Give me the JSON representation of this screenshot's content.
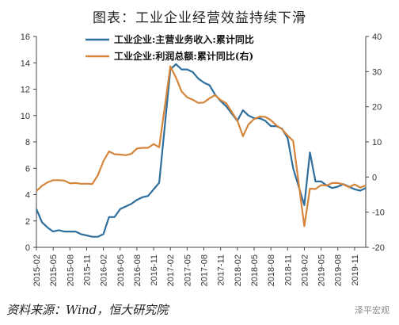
{
  "chart_data": {
    "type": "line",
    "title": "图表：工业企业经营效益持续下滑",
    "left_axis": {
      "min": 0,
      "max": 16,
      "step": 2
    },
    "right_axis": {
      "min": -20,
      "max": 40,
      "step": 10
    },
    "x_tick_labels": [
      "2015-02",
      "2015-05",
      "2015-08",
      "2015-11",
      "2016-02",
      "2016-05",
      "2016-08",
      "2016-11",
      "2017-02",
      "2017-05",
      "2017-08",
      "2017-11",
      "2018-02",
      "2018-05",
      "2018-08",
      "2018-11",
      "2019-02",
      "2019-05",
      "2019-08",
      "2019-11"
    ],
    "legend_placement": "top-left",
    "grid": false,
    "series": [
      {
        "name": "工业企业:主营业务收入:累计同比",
        "axis": "left",
        "color": "#2f6f9e",
        "points": [
          [
            "2015-02",
            2.9
          ],
          [
            "2015-03",
            1.9
          ],
          [
            "2015-04",
            1.5
          ],
          [
            "2015-05",
            1.2
          ],
          [
            "2015-06",
            1.3
          ],
          [
            "2015-07",
            1.2
          ],
          [
            "2015-08",
            1.2
          ],
          [
            "2015-09",
            1.2
          ],
          [
            "2015-10",
            1.0
          ],
          [
            "2015-11",
            0.9
          ],
          [
            "2015-12",
            0.8
          ],
          [
            "2016-01",
            0.8
          ],
          [
            "2016-02",
            1.0
          ],
          [
            "2016-03",
            2.3
          ],
          [
            "2016-04",
            2.3
          ],
          [
            "2016-05",
            2.9
          ],
          [
            "2016-06",
            3.1
          ],
          [
            "2016-07",
            3.3
          ],
          [
            "2016-08",
            3.6
          ],
          [
            "2016-09",
            3.8
          ],
          [
            "2016-10",
            3.9
          ],
          [
            "2016-11",
            4.4
          ],
          [
            "2016-12",
            4.9
          ],
          [
            "2017-02",
            13.5
          ],
          [
            "2017-03",
            13.9
          ],
          [
            "2017-04",
            13.5
          ],
          [
            "2017-05",
            13.5
          ],
          [
            "2017-06",
            13.3
          ],
          [
            "2017-07",
            12.8
          ],
          [
            "2017-08",
            12.5
          ],
          [
            "2017-09",
            12.3
          ],
          [
            "2017-10",
            11.6
          ],
          [
            "2017-11",
            11.1
          ],
          [
            "2017-12",
            10.7
          ],
          [
            "2018-02",
            9.6
          ],
          [
            "2018-03",
            10.4
          ],
          [
            "2018-04",
            10.0
          ],
          [
            "2018-05",
            9.8
          ],
          [
            "2018-06",
            9.8
          ],
          [
            "2018-07",
            9.6
          ],
          [
            "2018-08",
            9.2
          ],
          [
            "2018-09",
            9.2
          ],
          [
            "2018-10",
            9.0
          ],
          [
            "2018-11",
            8.3
          ],
          [
            "2018-12",
            6.0
          ],
          [
            "2019-02",
            3.2
          ],
          [
            "2019-03",
            7.2
          ],
          [
            "2019-04",
            5.0
          ],
          [
            "2019-05",
            5.0
          ],
          [
            "2019-06",
            4.7
          ],
          [
            "2019-07",
            4.5
          ],
          [
            "2019-08",
            4.6
          ],
          [
            "2019-09",
            4.8
          ],
          [
            "2019-10",
            4.6
          ],
          [
            "2019-11",
            4.4
          ],
          [
            "2019-12",
            4.3
          ],
          [
            "2020-01",
            4.5
          ]
        ]
      },
      {
        "name": "工业企业:利润总额:累计同比(右)",
        "axis": "right",
        "color": "#d4853a",
        "points": [
          [
            "2015-02",
            -4.0
          ],
          [
            "2015-03",
            -2.5
          ],
          [
            "2015-04",
            -1.5
          ],
          [
            "2015-05",
            -0.9
          ],
          [
            "2015-06",
            -0.9
          ],
          [
            "2015-07",
            -1.0
          ],
          [
            "2015-08",
            -1.8
          ],
          [
            "2015-09",
            -1.7
          ],
          [
            "2015-10",
            -1.9
          ],
          [
            "2015-11",
            -1.9
          ],
          [
            "2015-12",
            -2.0
          ],
          [
            "2016-01",
            0.5
          ],
          [
            "2016-02",
            4.5
          ],
          [
            "2016-03",
            7.3
          ],
          [
            "2016-04",
            6.5
          ],
          [
            "2016-05",
            6.4
          ],
          [
            "2016-06",
            6.2
          ],
          [
            "2016-07",
            6.6
          ],
          [
            "2016-08",
            8.1
          ],
          [
            "2016-09",
            8.3
          ],
          [
            "2016-10",
            8.3
          ],
          [
            "2016-11",
            9.4
          ],
          [
            "2016-12",
            8.5
          ],
          [
            "2017-02",
            31.5
          ],
          [
            "2017-03",
            28.3
          ],
          [
            "2017-04",
            24.4
          ],
          [
            "2017-05",
            22.7
          ],
          [
            "2017-06",
            22.0
          ],
          [
            "2017-07",
            21.1
          ],
          [
            "2017-08",
            21.2
          ],
          [
            "2017-09",
            22.4
          ],
          [
            "2017-10",
            23.3
          ],
          [
            "2017-11",
            21.9
          ],
          [
            "2017-12",
            21.0
          ],
          [
            "2018-02",
            16.1
          ],
          [
            "2018-03",
            11.6
          ],
          [
            "2018-04",
            15.0
          ],
          [
            "2018-05",
            16.5
          ],
          [
            "2018-06",
            17.2
          ],
          [
            "2018-07",
            17.1
          ],
          [
            "2018-08",
            16.2
          ],
          [
            "2018-09",
            14.7
          ],
          [
            "2018-10",
            13.6
          ],
          [
            "2018-11",
            11.8
          ],
          [
            "2018-12",
            10.3
          ],
          [
            "2019-02",
            -14.0
          ],
          [
            "2019-03",
            -3.3
          ],
          [
            "2019-04",
            -3.4
          ],
          [
            "2019-05",
            -2.3
          ],
          [
            "2019-06",
            -2.4
          ],
          [
            "2019-07",
            -1.7
          ],
          [
            "2019-08",
            -1.7
          ],
          [
            "2019-09",
            -2.1
          ],
          [
            "2019-10",
            -2.9
          ],
          [
            "2019-11",
            -2.1
          ],
          [
            "2019-12",
            -3.0
          ],
          [
            "2020-01",
            -2.4
          ]
        ]
      }
    ]
  },
  "source_note": "资料来源：Wind，恒大研究院",
  "watermark": "泽平宏观"
}
